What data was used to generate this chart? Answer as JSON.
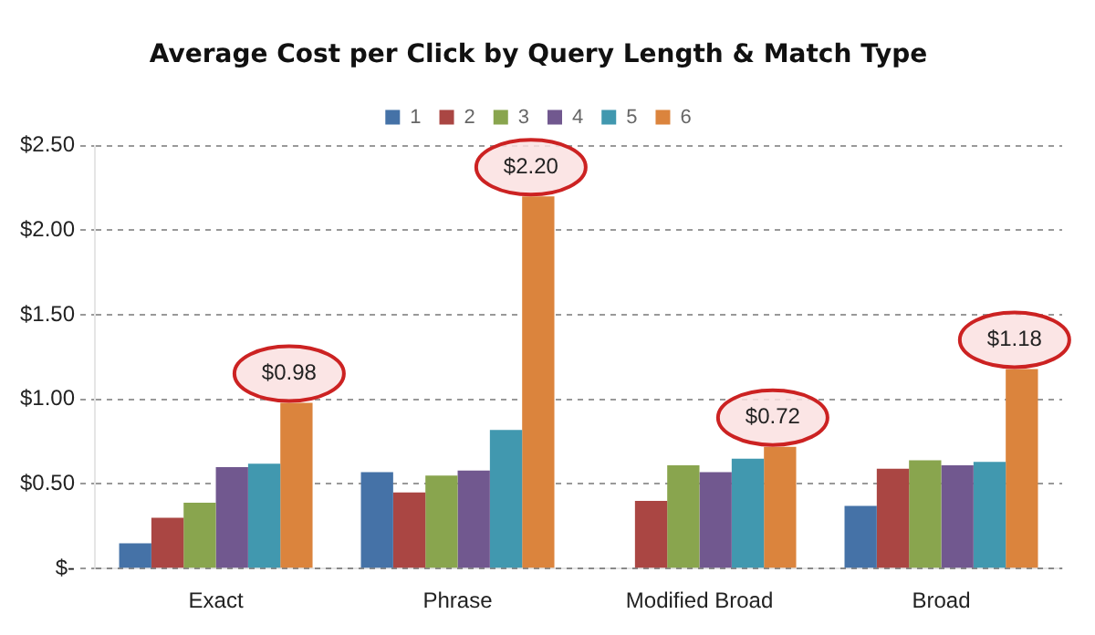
{
  "chart_data": {
    "type": "bar",
    "title": "Average Cost per Click by Query Length & Match Type",
    "categories": [
      "Exact",
      "Phrase",
      "Modified Broad",
      "Broad"
    ],
    "series": [
      {
        "name": "1",
        "color": "#4572a7",
        "values": [
          0.15,
          0.57,
          null,
          0.37
        ]
      },
      {
        "name": "2",
        "color": "#aa4643",
        "values": [
          0.3,
          0.45,
          0.4,
          0.59
        ]
      },
      {
        "name": "3",
        "color": "#89a54e",
        "values": [
          0.39,
          0.55,
          0.61,
          0.64
        ]
      },
      {
        "name": "4",
        "color": "#71588f",
        "values": [
          0.6,
          0.58,
          0.57,
          0.61
        ]
      },
      {
        "name": "5",
        "color": "#4198af",
        "values": [
          0.62,
          0.82,
          0.65,
          0.63
        ]
      },
      {
        "name": "6",
        "color": "#db843d",
        "values": [
          0.98,
          2.2,
          0.72,
          1.18
        ],
        "value_labels": [
          "$0.98",
          "$2.20",
          "$0.72",
          "$1.18"
        ]
      }
    ],
    "ylim": [
      0,
      2.5
    ],
    "yticks": [
      {
        "value": 0,
        "label": "$-"
      },
      {
        "value": 0.5,
        "label": "$0.50"
      },
      {
        "value": 1,
        "label": "$1.00"
      },
      {
        "value": 1.5,
        "label": "$1.50"
      },
      {
        "value": 2,
        "label": "$2.00"
      },
      {
        "value": 2.5,
        "label": "$2.50"
      }
    ],
    "grid": "y",
    "legend": "top"
  }
}
